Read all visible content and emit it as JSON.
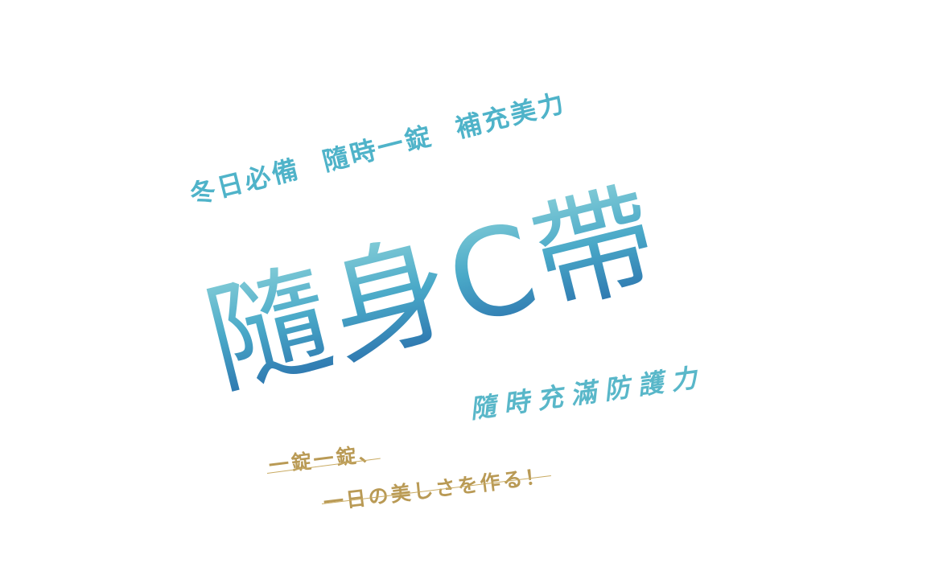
{
  "tagline": "冬日必備 隨時一錠 補充美力",
  "headline": "隨身C帶",
  "subline": "隨時充滿防護力",
  "slogan": {
    "line1": "一錠一錠、",
    "line2": "一日の美しさを作る！"
  },
  "colors": {
    "teal": "#4fb3c9",
    "gradient_top": "#7fcad6",
    "gradient_bottom": "#2b72ad",
    "gold": "#b99a55"
  }
}
